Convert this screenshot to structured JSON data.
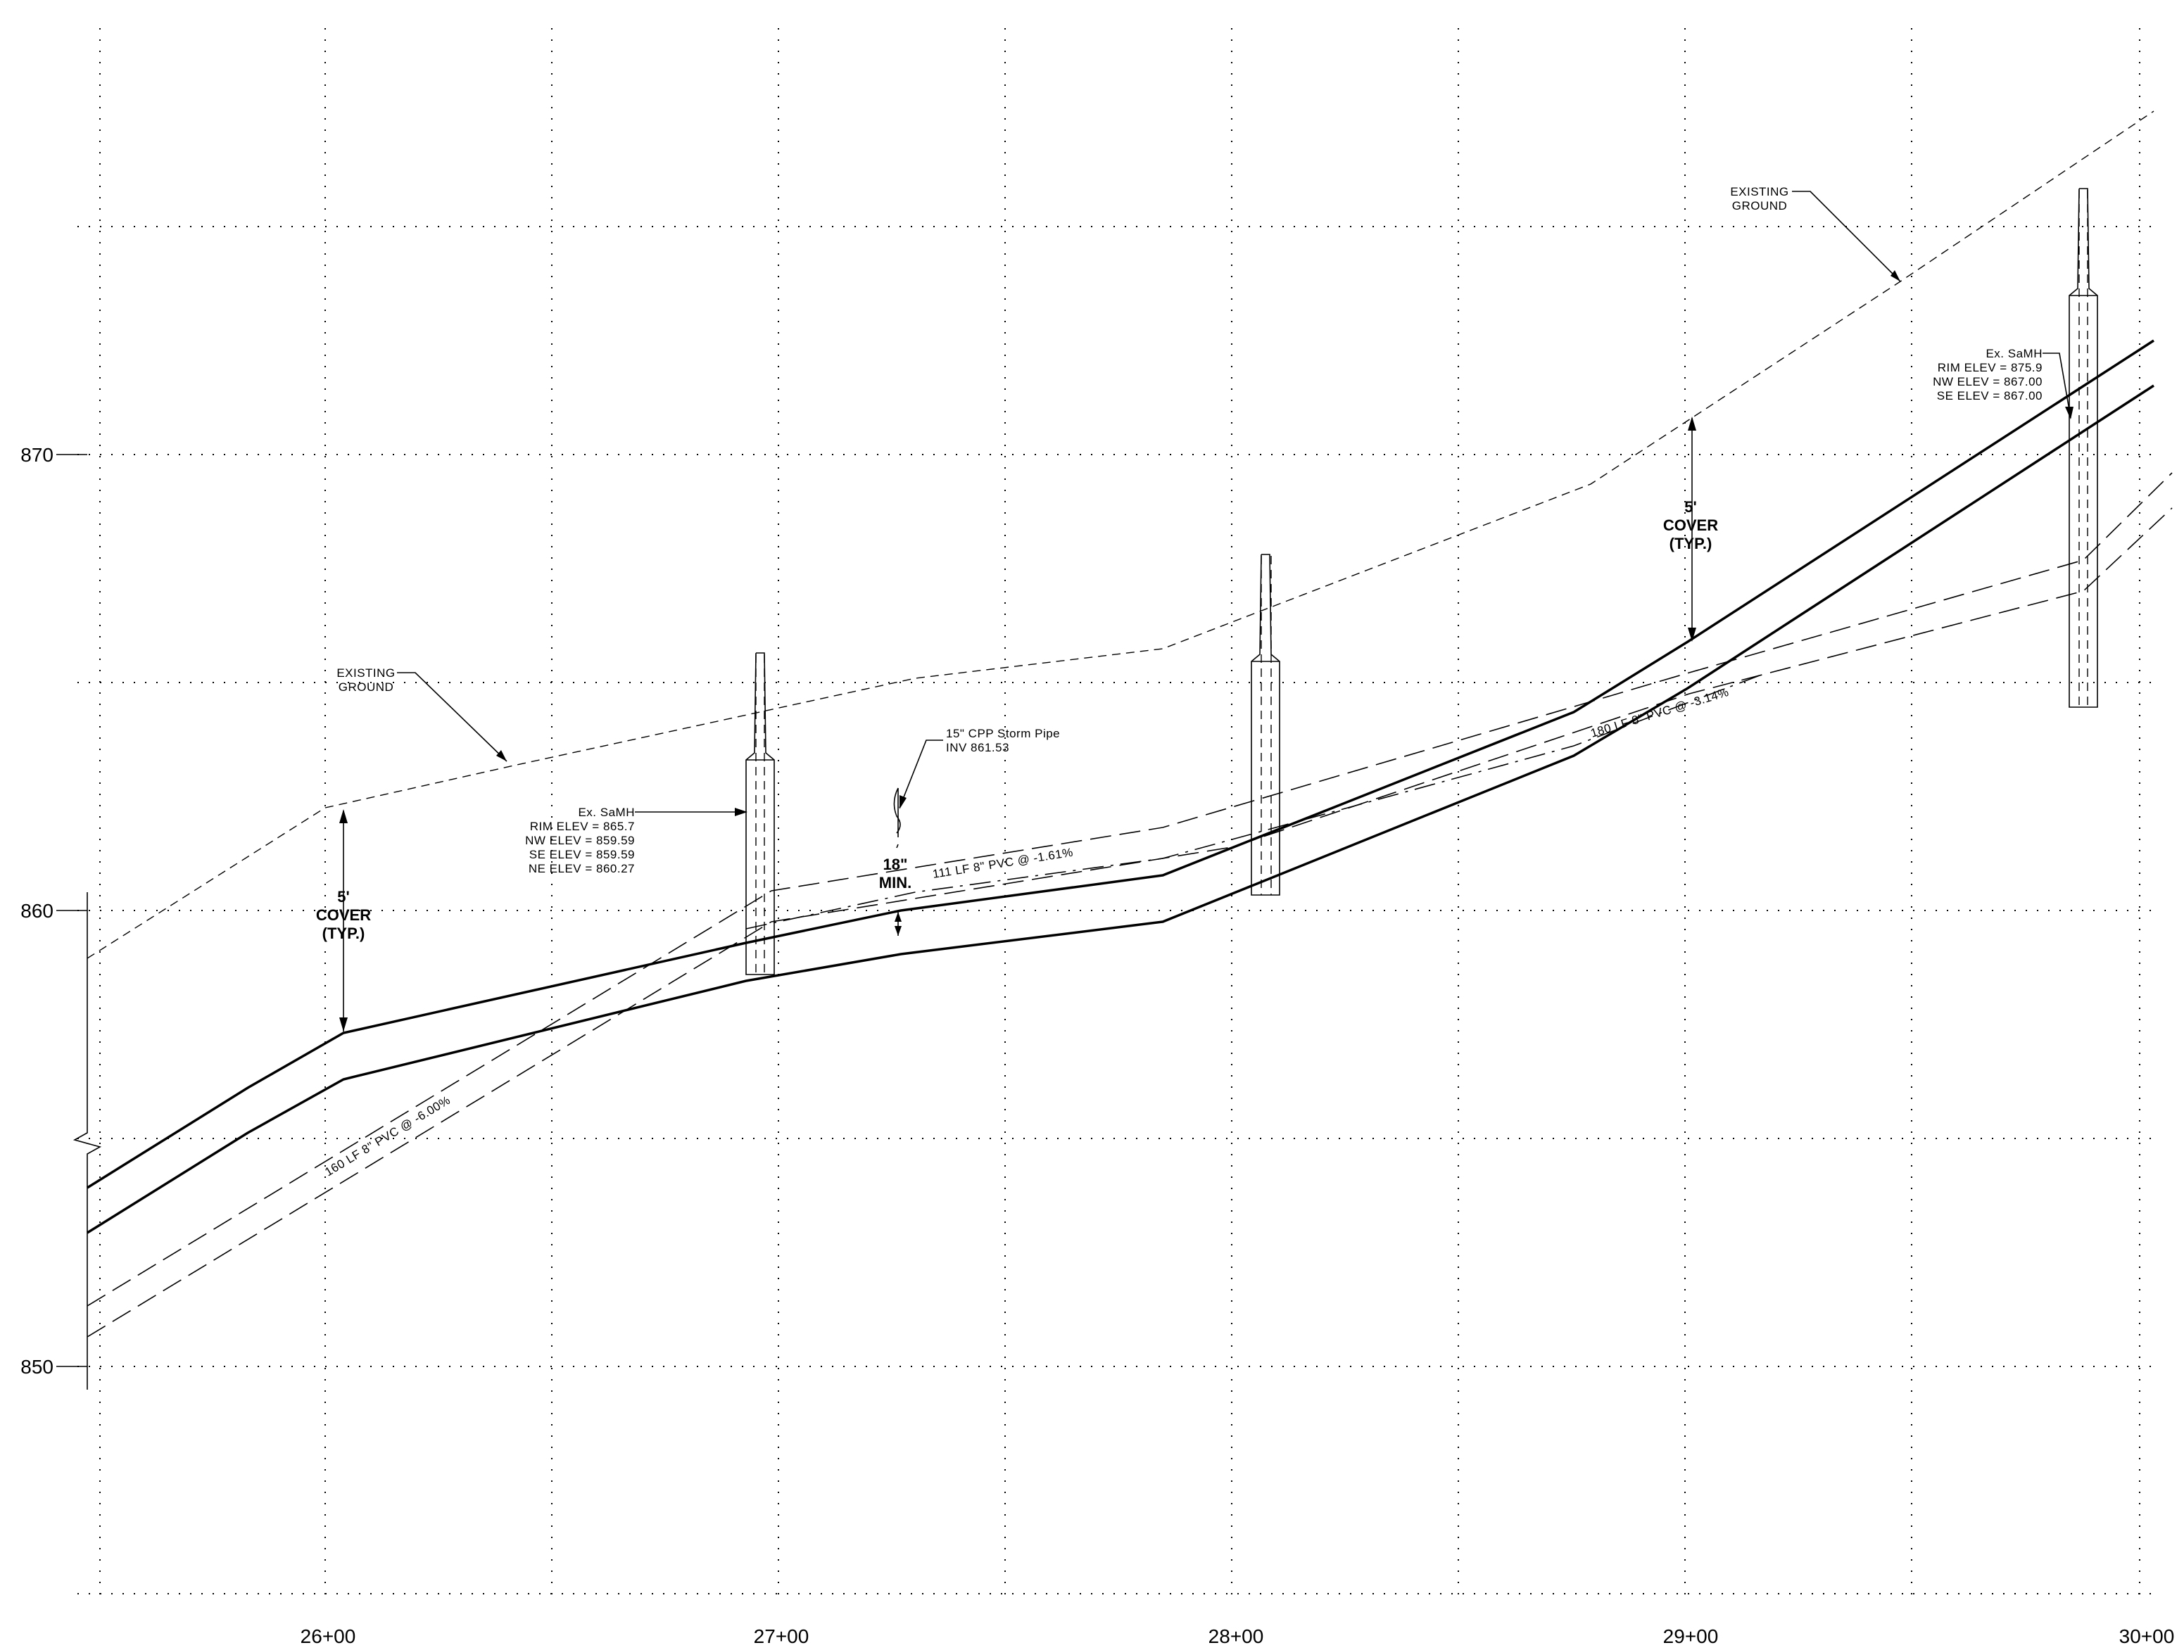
{
  "axes": {
    "y_ticks": [
      "850",
      "860",
      "870"
    ],
    "x_ticks": [
      "26+00",
      "27+00",
      "28+00",
      "29+00",
      "30+00"
    ]
  },
  "labels": {
    "existing_ground_left": [
      "EXISTING",
      "GROUND"
    ],
    "existing_ground_right": [
      "EXISTING",
      "GROUND"
    ],
    "cover_left": [
      "5'",
      "COVER",
      "(TYP.)"
    ],
    "cover_right": [
      "5'",
      "COVER",
      "(TYP.)"
    ],
    "min_cover": [
      "18\"",
      "MIN."
    ],
    "storm_pipe": [
      "15\" CPP Storm Pipe",
      "INV 861.53"
    ],
    "manhole_left": [
      "Ex. SaMH",
      "RIM ELEV = 865.7",
      "NW ELEV = 859.59",
      "SE ELEV = 859.59",
      "NE ELEV = 860.27"
    ],
    "manhole_right": [
      "Ex. SaMH",
      "RIM ELEV = 875.9",
      "NW ELEV = 867.00",
      "SE ELEV = 867.00"
    ],
    "pipe_label_1": "160 LF 8\" PVC @ -6.00%",
    "pipe_label_2": "111 LF 8\" PVC @ -1.61%",
    "pipe_label_3": "180 LF 8\" PVC @ -3.14%"
  }
}
